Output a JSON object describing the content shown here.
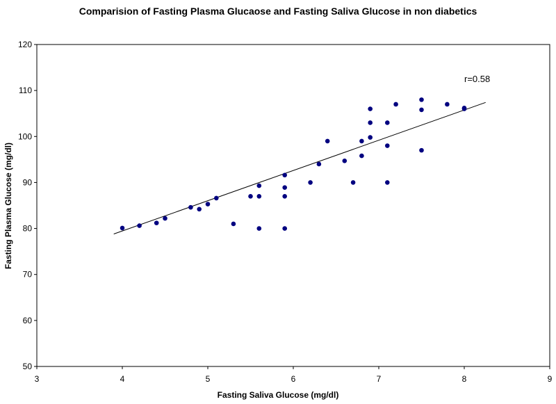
{
  "chart_data": {
    "type": "scatter",
    "title": "Comparision of Fasting Plasma Glucaose and Fasting Saliva Glucose in non diabetics",
    "xlabel": "Fasting Saliva Glucose (mg/dl)",
    "ylabel": "Fasting Plasma Glucose (mg/dl)",
    "xlim": [
      3,
      9
    ],
    "ylim": [
      50,
      120
    ],
    "xticks": [
      3,
      4,
      5,
      6,
      7,
      8,
      9
    ],
    "yticks": [
      50,
      60,
      70,
      80,
      90,
      100,
      110,
      120
    ],
    "grid": false,
    "legend": "none",
    "marker_color": "#000080",
    "trendline": {
      "x": [
        3.9,
        8.25
      ],
      "y": [
        78.8,
        107.4
      ],
      "color": "#000000"
    },
    "annotation": "r=0.58",
    "points": [
      {
        "x": 4.0,
        "y": 80.1
      },
      {
        "x": 4.2,
        "y": 80.6
      },
      {
        "x": 4.4,
        "y": 81.2
      },
      {
        "x": 4.5,
        "y": 82.2
      },
      {
        "x": 4.8,
        "y": 84.6
      },
      {
        "x": 4.9,
        "y": 84.2
      },
      {
        "x": 5.0,
        "y": 85.3
      },
      {
        "x": 5.1,
        "y": 86.6
      },
      {
        "x": 5.3,
        "y": 81.0
      },
      {
        "x": 5.5,
        "y": 87.0
      },
      {
        "x": 5.6,
        "y": 87.0
      },
      {
        "x": 5.6,
        "y": 89.3
      },
      {
        "x": 5.6,
        "y": 80.0
      },
      {
        "x": 5.9,
        "y": 91.6
      },
      {
        "x": 5.9,
        "y": 88.9
      },
      {
        "x": 5.9,
        "y": 87.0
      },
      {
        "x": 5.9,
        "y": 80.0
      },
      {
        "x": 6.2,
        "y": 90.0
      },
      {
        "x": 6.3,
        "y": 94.0
      },
      {
        "x": 6.4,
        "y": 99.0
      },
      {
        "x": 6.6,
        "y": 94.7
      },
      {
        "x": 6.7,
        "y": 90.0
      },
      {
        "x": 6.8,
        "y": 99.0
      },
      {
        "x": 6.8,
        "y": 95.8
      },
      {
        "x": 6.9,
        "y": 106.0
      },
      {
        "x": 6.9,
        "y": 103.0
      },
      {
        "x": 6.9,
        "y": 99.8
      },
      {
        "x": 7.1,
        "y": 103.0
      },
      {
        "x": 7.1,
        "y": 98.0
      },
      {
        "x": 7.1,
        "y": 90.0
      },
      {
        "x": 7.2,
        "y": 107.0
      },
      {
        "x": 7.5,
        "y": 108.0
      },
      {
        "x": 7.5,
        "y": 105.8
      },
      {
        "x": 7.5,
        "y": 97.0
      },
      {
        "x": 7.8,
        "y": 107.0
      },
      {
        "x": 8.0,
        "y": 106.2
      },
      {
        "x": 8.0,
        "y": 106.0
      }
    ]
  }
}
